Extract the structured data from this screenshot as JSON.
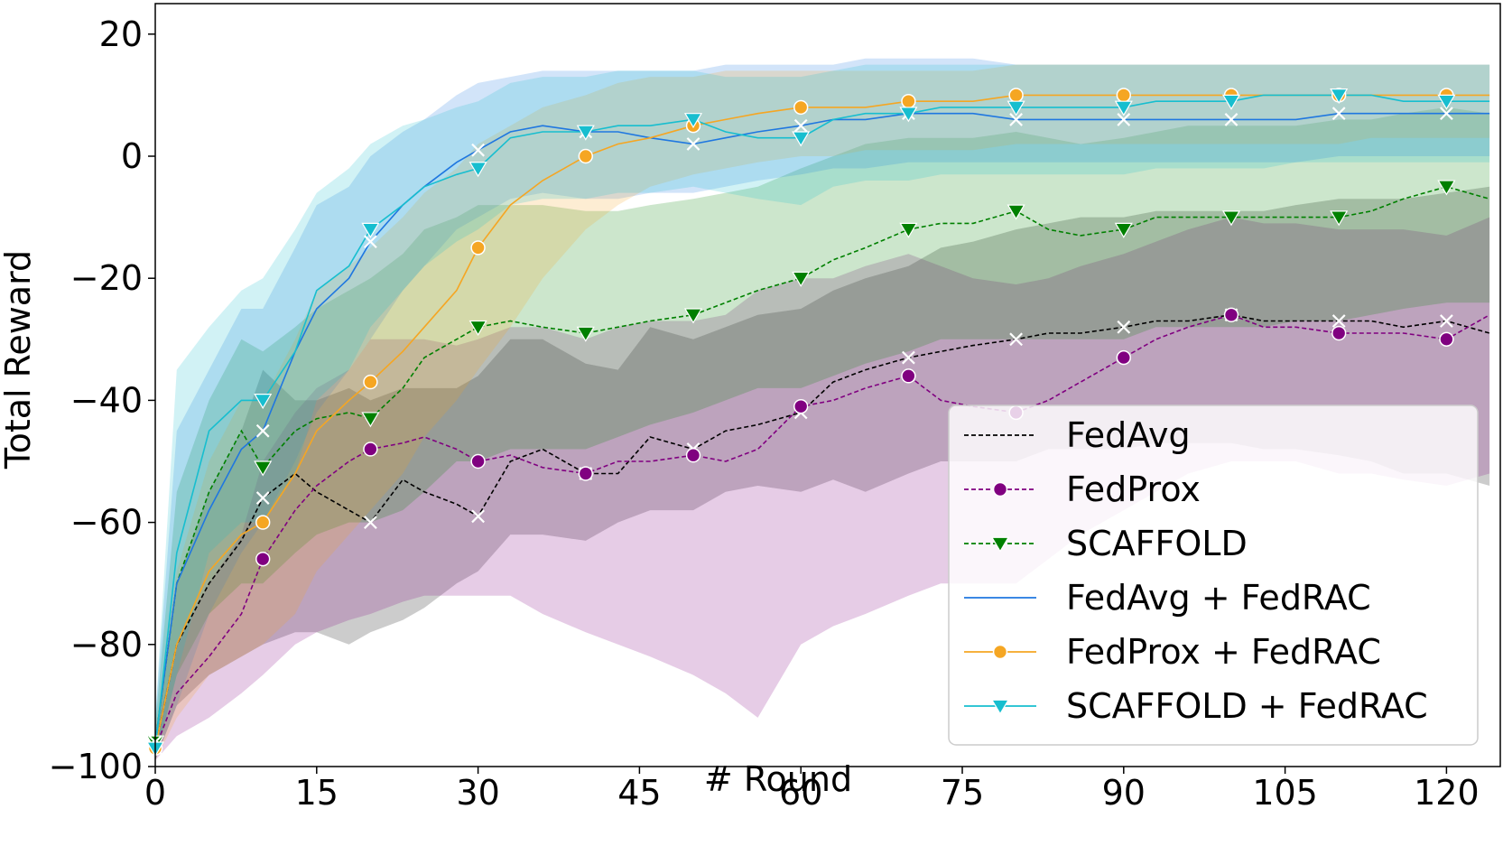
{
  "chart_data": {
    "type": "line",
    "title": "",
    "xlabel": "# Round",
    "ylabel": "Total Reward",
    "xlim": [
      0,
      125
    ],
    "ylim": [
      -100,
      25
    ],
    "xticks": [
      0,
      15,
      30,
      45,
      60,
      75,
      90,
      105,
      120
    ],
    "yticks": [
      -100,
      -80,
      -60,
      -40,
      -20,
      0,
      20
    ],
    "xtick_labels": [
      "0",
      "15",
      "30",
      "45",
      "60",
      "75",
      "90",
      "105",
      "120"
    ],
    "ytick_labels": [
      "−100",
      "−80",
      "−60",
      "−40",
      "−20",
      "0",
      "20"
    ],
    "grid": false,
    "legend_position": "lower-right",
    "series": [
      {
        "name": "FedAvg",
        "color": "#000000",
        "linestyle": "dashed",
        "marker": "x",
        "x": [
          0,
          2,
          5,
          8,
          10,
          13,
          15,
          18,
          20,
          23,
          25,
          28,
          30,
          33,
          36,
          40,
          43,
          46,
          50,
          53,
          56,
          60,
          63,
          66,
          70,
          73,
          76,
          80,
          83,
          86,
          90,
          93,
          96,
          100,
          103,
          106,
          110,
          113,
          116,
          120,
          124
        ],
        "values": [
          -97,
          -80,
          -70,
          -63,
          -56,
          -52,
          -55,
          -58,
          -60,
          -53,
          -55,
          -57,
          -59,
          -50,
          -48,
          -52,
          -52,
          -46,
          -48,
          -45,
          -44,
          -42,
          -37,
          -35,
          -33,
          -32,
          -31,
          -30,
          -29,
          -29,
          -28,
          -27,
          -27,
          -26,
          -27,
          -27,
          -27,
          -27,
          -28,
          -27,
          -29
        ],
        "lower": [
          -99,
          -90,
          -85,
          -82,
          -80,
          -78,
          -78,
          -80,
          -78,
          -76,
          -74,
          -70,
          -68,
          -62,
          -62,
          -63,
          -60,
          -58,
          -58,
          -55,
          -54,
          -55,
          -53,
          -55,
          -52,
          -50,
          -50,
          -50,
          -48,
          -48,
          -48,
          -47,
          -47,
          -47,
          -48,
          -48,
          -49,
          -50,
          -52,
          -52,
          -54
        ],
        "upper": [
          -95,
          -70,
          -55,
          -45,
          -35,
          -40,
          -40,
          -38,
          -40,
          -38,
          -38,
          -38,
          -36,
          -30,
          -30,
          -34,
          -35,
          -28,
          -30,
          -28,
          -26,
          -25,
          -22,
          -20,
          -18,
          -15,
          -14,
          -12,
          -11,
          -10,
          -10,
          -9,
          -9,
          -9,
          -9,
          -8,
          -7,
          -7,
          -7,
          -6,
          -5
        ]
      },
      {
        "name": "FedProx",
        "color": "#800080",
        "linestyle": "dashed",
        "marker": "circle",
        "x": [
          0,
          2,
          5,
          8,
          10,
          13,
          15,
          18,
          20,
          23,
          25,
          28,
          30,
          33,
          36,
          40,
          43,
          46,
          50,
          53,
          56,
          60,
          63,
          66,
          70,
          73,
          76,
          80,
          83,
          86,
          90,
          93,
          96,
          100,
          103,
          106,
          110,
          113,
          116,
          120,
          124
        ],
        "values": [
          -97,
          -88,
          -82,
          -75,
          -66,
          -58,
          -54,
          -50,
          -48,
          -47,
          -46,
          -48,
          -50,
          -49,
          -51,
          -52,
          -50,
          -50,
          -49,
          -50,
          -48,
          -41,
          -40,
          -38,
          -36,
          -40,
          -41,
          -42,
          -40,
          -37,
          -33,
          -30,
          -28,
          -26,
          -28,
          -28,
          -29,
          -29,
          -29,
          -30,
          -26
        ],
        "lower": [
          -99,
          -95,
          -92,
          -88,
          -85,
          -80,
          -78,
          -76,
          -75,
          -73,
          -72,
          -72,
          -72,
          -72,
          -75,
          -78,
          -80,
          -82,
          -85,
          -88,
          -92,
          -80,
          -77,
          -75,
          -72,
          -70,
          -70,
          -70,
          -66,
          -62,
          -58,
          -55,
          -52,
          -50,
          -50,
          -50,
          -52,
          -52,
          -53,
          -54,
          -52
        ],
        "upper": [
          -95,
          -80,
          -70,
          -62,
          -50,
          -42,
          -38,
          -35,
          -30,
          -30,
          -30,
          -31,
          -30,
          -28,
          -28,
          -30,
          -28,
          -27,
          -27,
          -26,
          -22,
          -20,
          -20,
          -18,
          -16,
          -18,
          -20,
          -21,
          -20,
          -18,
          -16,
          -14,
          -12,
          -10,
          -11,
          -11,
          -12,
          -12,
          -12,
          -13,
          -10
        ]
      },
      {
        "name": "SCAFFOLD",
        "color": "#008000",
        "linestyle": "dashed",
        "marker": "triangle-down",
        "x": [
          0,
          2,
          5,
          8,
          10,
          13,
          15,
          18,
          20,
          23,
          25,
          28,
          30,
          33,
          36,
          40,
          43,
          46,
          50,
          53,
          56,
          60,
          63,
          66,
          70,
          73,
          76,
          80,
          83,
          86,
          90,
          93,
          96,
          100,
          103,
          106,
          110,
          113,
          116,
          120,
          124
        ],
        "values": [
          -96,
          -70,
          -55,
          -45,
          -51,
          -45,
          -43,
          -42,
          -43,
          -38,
          -33,
          -30,
          -28,
          -27,
          -28,
          -29,
          -28,
          -27,
          -26,
          -24,
          -22,
          -20,
          -17,
          -15,
          -12,
          -11,
          -11,
          -9,
          -12,
          -13,
          -12,
          -10,
          -10,
          -10,
          -10,
          -10,
          -10,
          -9,
          -7,
          -5,
          -7
        ],
        "lower": [
          -99,
          -85,
          -75,
          -70,
          -70,
          -65,
          -62,
          -60,
          -60,
          -58,
          -55,
          -50,
          -50,
          -48,
          -48,
          -48,
          -46,
          -44,
          -42,
          -40,
          -38,
          -38,
          -36,
          -34,
          -32,
          -30,
          -30,
          -30,
          -30,
          -30,
          -30,
          -28,
          -28,
          -28,
          -28,
          -27,
          -27,
          -26,
          -25,
          -24,
          -24
        ],
        "upper": [
          -93,
          -55,
          -40,
          -30,
          -32,
          -28,
          -25,
          -22,
          -20,
          -16,
          -12,
          -10,
          -8,
          -8,
          -8,
          -9,
          -9,
          -8,
          -7,
          -6,
          -5,
          -2,
          0,
          2,
          3,
          3,
          3,
          4,
          3,
          2,
          3,
          4,
          5,
          5,
          5,
          5,
          6,
          6,
          7,
          8,
          7
        ]
      },
      {
        "name": "FedAvg + FedRAC",
        "color": "#1f77e0",
        "linestyle": "solid",
        "marker": "x",
        "x": [
          0,
          2,
          5,
          8,
          10,
          13,
          15,
          18,
          20,
          23,
          25,
          28,
          30,
          33,
          36,
          40,
          43,
          46,
          50,
          53,
          56,
          60,
          63,
          66,
          70,
          73,
          76,
          80,
          83,
          86,
          90,
          93,
          96,
          100,
          103,
          106,
          110,
          113,
          116,
          120,
          124
        ],
        "values": [
          -96,
          -70,
          -58,
          -48,
          -45,
          -32,
          -25,
          -20,
          -14,
          -8,
          -5,
          -1,
          1,
          4,
          5,
          4,
          4,
          3,
          2,
          3,
          4,
          5,
          6,
          6,
          7,
          7,
          7,
          6,
          6,
          6,
          6,
          6,
          6,
          6,
          6,
          6,
          7,
          7,
          7,
          7,
          7
        ],
        "lower": [
          -99,
          -90,
          -75,
          -65,
          -60,
          -50,
          -42,
          -35,
          -30,
          -22,
          -18,
          -12,
          -10,
          -7,
          -6,
          -7,
          -7,
          -6,
          -6,
          -5,
          -4,
          -3,
          -2,
          -2,
          -1,
          -1,
          -1,
          -1,
          -1,
          -1,
          -1,
          -1,
          -1,
          -1,
          -1,
          -1,
          0,
          0,
          0,
          0,
          0
        ],
        "upper": [
          -92,
          -45,
          -35,
          -25,
          -25,
          -15,
          -8,
          -5,
          0,
          4,
          6,
          10,
          12,
          13,
          14,
          14,
          14,
          14,
          14,
          15,
          15,
          15,
          15,
          16,
          16,
          16,
          16,
          15,
          15,
          15,
          15,
          15,
          15,
          15,
          15,
          15,
          15,
          15,
          15,
          15,
          15
        ]
      },
      {
        "name": "FedProx + FedRAC",
        "color": "#f5a623",
        "linestyle": "solid",
        "marker": "circle",
        "x": [
          0,
          2,
          5,
          8,
          10,
          13,
          15,
          18,
          20,
          23,
          25,
          28,
          30,
          33,
          36,
          40,
          43,
          46,
          50,
          53,
          56,
          60,
          63,
          66,
          70,
          73,
          76,
          80,
          83,
          86,
          90,
          93,
          96,
          100,
          103,
          106,
          110,
          113,
          116,
          120,
          124
        ],
        "values": [
          -97,
          -80,
          -68,
          -62,
          -60,
          -52,
          -45,
          -40,
          -37,
          -32,
          -28,
          -22,
          -15,
          -8,
          -4,
          0,
          2,
          3,
          5,
          6,
          7,
          8,
          8,
          8,
          9,
          9,
          9,
          10,
          10,
          10,
          10,
          10,
          10,
          10,
          10,
          10,
          10,
          10,
          10,
          10,
          10
        ],
        "lower": [
          -99,
          -92,
          -85,
          -82,
          -80,
          -75,
          -68,
          -62,
          -58,
          -52,
          -46,
          -40,
          -35,
          -28,
          -20,
          -12,
          -8,
          -5,
          -3,
          -2,
          -1,
          0,
          0,
          1,
          1,
          1,
          1,
          2,
          2,
          2,
          2,
          2,
          2,
          2,
          2,
          2,
          2,
          3,
          3,
          3,
          3
        ],
        "upper": [
          -94,
          -68,
          -50,
          -40,
          -40,
          -30,
          -22,
          -18,
          -15,
          -10,
          -6,
          -2,
          2,
          5,
          8,
          10,
          12,
          13,
          13,
          14,
          14,
          14,
          14,
          14,
          14,
          14,
          14,
          15,
          15,
          15,
          15,
          15,
          15,
          15,
          15,
          15,
          15,
          15,
          15,
          15,
          15
        ]
      },
      {
        "name": "SCAFFOLD + FedRAC",
        "color": "#17becf",
        "linestyle": "solid",
        "marker": "triangle-down",
        "x": [
          0,
          2,
          5,
          8,
          10,
          13,
          15,
          18,
          20,
          23,
          25,
          28,
          30,
          33,
          36,
          40,
          43,
          46,
          50,
          53,
          56,
          60,
          63,
          66,
          70,
          73,
          76,
          80,
          83,
          86,
          90,
          93,
          96,
          100,
          103,
          106,
          110,
          113,
          116,
          120,
          124
        ],
        "values": [
          -97,
          -65,
          -45,
          -40,
          -40,
          -32,
          -22,
          -18,
          -12,
          -8,
          -5,
          -3,
          -2,
          3,
          4,
          4,
          5,
          5,
          6,
          4,
          3,
          3,
          6,
          7,
          7,
          8,
          8,
          8,
          8,
          8,
          8,
          9,
          9,
          9,
          10,
          10,
          10,
          10,
          9,
          9,
          9
        ],
        "lower": [
          -99,
          -85,
          -65,
          -60,
          -60,
          -52,
          -40,
          -35,
          -28,
          -22,
          -18,
          -14,
          -12,
          -8,
          -7,
          -7,
          -6,
          -6,
          -5,
          -6,
          -7,
          -8,
          -5,
          -4,
          -4,
          -3,
          -3,
          -3,
          -3,
          -3,
          -3,
          -2,
          -2,
          -2,
          -2,
          -1,
          -1,
          -1,
          -1,
          -1,
          -1
        ],
        "upper": [
          -92,
          -35,
          -28,
          -22,
          -20,
          -12,
          -6,
          -2,
          2,
          5,
          6,
          8,
          9,
          12,
          13,
          13,
          14,
          14,
          14,
          13,
          13,
          13,
          14,
          15,
          15,
          15,
          15,
          15,
          15,
          15,
          15,
          15,
          15,
          15,
          15,
          15,
          15,
          15,
          15,
          15,
          15
        ]
      }
    ],
    "marker_rounds": [
      0,
      10,
      20,
      30,
      40,
      50,
      60,
      70,
      80,
      90,
      100,
      110,
      120
    ]
  }
}
